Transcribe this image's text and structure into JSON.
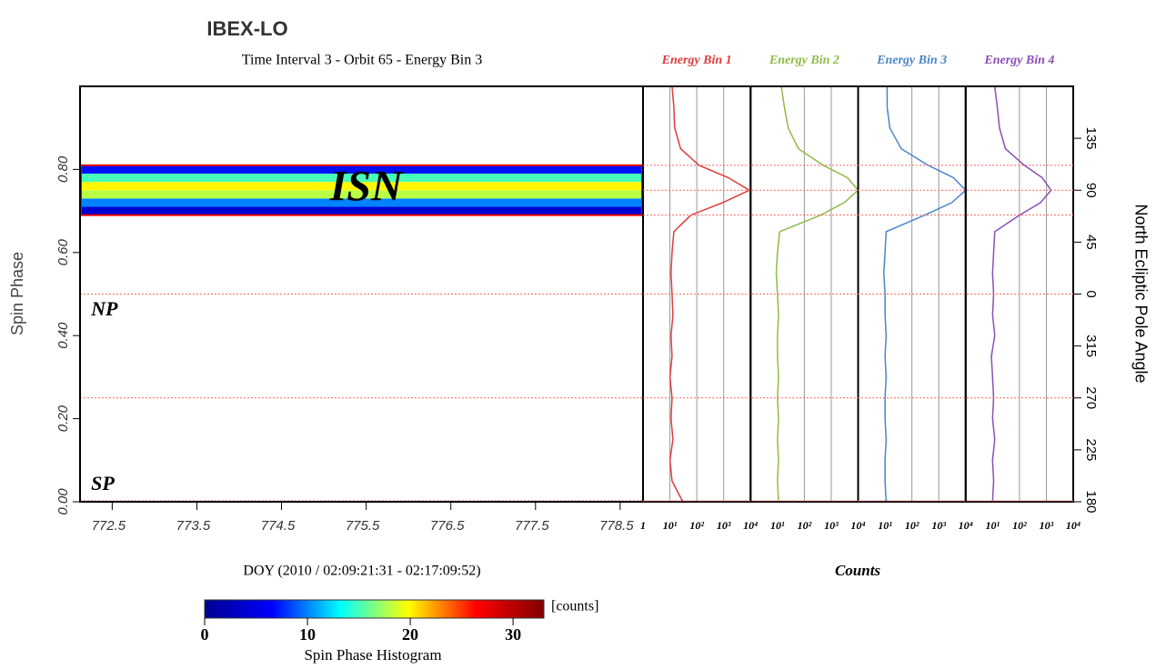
{
  "chart_data": [
    {
      "type": "heatmap",
      "title": "IBEX-LO",
      "subtitle": "Time Interval 3 - Orbit 65 - Energy Bin 3",
      "xlabel": "DOY (2010 / 02:09:21:31 - 02:17:09:52)",
      "ylabel": "Spin Phase",
      "xlim": [
        772.12,
        778.77
      ],
      "xticks": [
        772.5,
        773.5,
        774.5,
        775.5,
        776.5,
        777.5,
        778.5
      ],
      "ylim": [
        0,
        1.0
      ],
      "yticks": [
        {
          "value": 0,
          "label": "0.00"
        },
        {
          "value": 0.2,
          "label": "0.20"
        },
        {
          "value": 0.4,
          "label": "0.40"
        },
        {
          "value": 0.6,
          "label": "0.60"
        },
        {
          "value": 0.8,
          "label": "0.80"
        }
      ],
      "y_edges": [
        0.69,
        0.71,
        0.73,
        0.75,
        0.77,
        0.79,
        0.81
      ],
      "values": [
        4,
        10,
        18,
        20,
        15,
        7
      ],
      "colormap": [
        "#00008f",
        "#0000ff",
        "#00ffff",
        "#ffff00",
        "#ff0000",
        "#800000"
      ],
      "region": [
        0.69,
        0.81
      ],
      "reference_lines": [
        0.5,
        0.25,
        0
      ],
      "annotations": [
        {
          "text": "ISN",
          "x": 775.5,
          "y": 0.75
        },
        {
          "text": "NP",
          "x": 772.25,
          "y": 0.46
        },
        {
          "text": "SP",
          "x": 772.25,
          "y": 0.04
        }
      ],
      "colorbar": {
        "lim": [
          0,
          33
        ],
        "ticks": [
          0,
          10,
          20,
          30
        ],
        "unit": "[counts]",
        "title": "Spin Phase Histogram"
      }
    },
    {
      "type": "line",
      "xlabel": "Counts",
      "y2label": "North Ecliptic Pole Angle",
      "log_x": true,
      "xlim": [
        1,
        10000
      ],
      "ylim": [
        0,
        1.0
      ],
      "y": [
        0,
        0.05,
        0.1,
        0.15,
        0.2,
        0.25,
        0.3,
        0.35,
        0.4,
        0.45,
        0.5,
        0.55,
        0.6,
        0.65,
        0.69,
        0.72,
        0.75,
        0.78,
        0.81,
        0.85,
        0.9,
        0.95,
        1.0
      ],
      "y2lim": [
        180,
        540
      ],
      "y2ticks": [
        180,
        225,
        270,
        315,
        {
          "value": 360,
          "label": "0"
        },
        {
          "value": 405,
          "label": "45"
        },
        {
          "value": 450,
          "label": "90"
        },
        {
          "value": 495,
          "label": "135"
        }
      ],
      "reference_lines": [
        0.81,
        0.75,
        0.69,
        0.5,
        0.25,
        0
      ],
      "series": [
        {
          "name": "Energy Bin 1",
          "color": "#e03c3c",
          "xticks": [
            {
              "value": 1,
              "label": "1"
            },
            {
              "value": 10,
              "label": "10¹"
            },
            {
              "value": 100,
              "label": "10²"
            },
            {
              "value": 1000,
              "label": "10³"
            },
            {
              "value": 10000,
              "label": "10⁴"
            }
          ],
          "values": [
            30,
            12,
            10,
            13,
            11,
            12,
            10,
            12,
            11,
            13,
            12,
            11,
            12,
            14,
            60,
            900,
            9000,
            1500,
            120,
            25,
            15,
            14,
            12
          ]
        },
        {
          "name": "Energy Bin 2",
          "color": "#8fbc45",
          "xticks": [
            {
              "value": 10,
              "label": "10¹"
            },
            {
              "value": 100,
              "label": "10²"
            },
            {
              "value": 1000,
              "label": "10³"
            },
            {
              "value": 10000,
              "label": "10⁴"
            }
          ],
          "values": [
            11,
            10,
            11,
            10,
            11,
            10,
            11,
            10,
            10,
            11,
            10,
            9,
            10,
            12,
            400,
            3000,
            10000,
            4000,
            500,
            60,
            25,
            18,
            14
          ]
        },
        {
          "name": "Energy Bin 3",
          "color": "#4a86c8",
          "xticks": [
            {
              "value": 10,
              "label": "10¹"
            },
            {
              "value": 100,
              "label": "10²"
            },
            {
              "value": 1000,
              "label": "10³"
            },
            {
              "value": 10000,
              "label": "10⁴"
            }
          ],
          "values": [
            11,
            10,
            10,
            11,
            10,
            10,
            11,
            10,
            11,
            10,
            10,
            9,
            10,
            11,
            300,
            3000,
            10000,
            3500,
            400,
            40,
            15,
            12,
            12
          ]
        },
        {
          "name": "Energy Bin 4",
          "color": "#8a4fb5",
          "xticks": [
            {
              "value": 10,
              "label": "10¹"
            },
            {
              "value": 100,
              "label": "10²"
            },
            {
              "value": 1000,
              "label": "10³"
            },
            {
              "value": 10000,
              "label": "10⁴"
            }
          ],
          "values": [
            10,
            11,
            10,
            12,
            10,
            11,
            10,
            9,
            12,
            10,
            11,
            10,
            11,
            12,
            100,
            600,
            1500,
            700,
            150,
            30,
            18,
            15,
            12
          ]
        }
      ]
    }
  ]
}
